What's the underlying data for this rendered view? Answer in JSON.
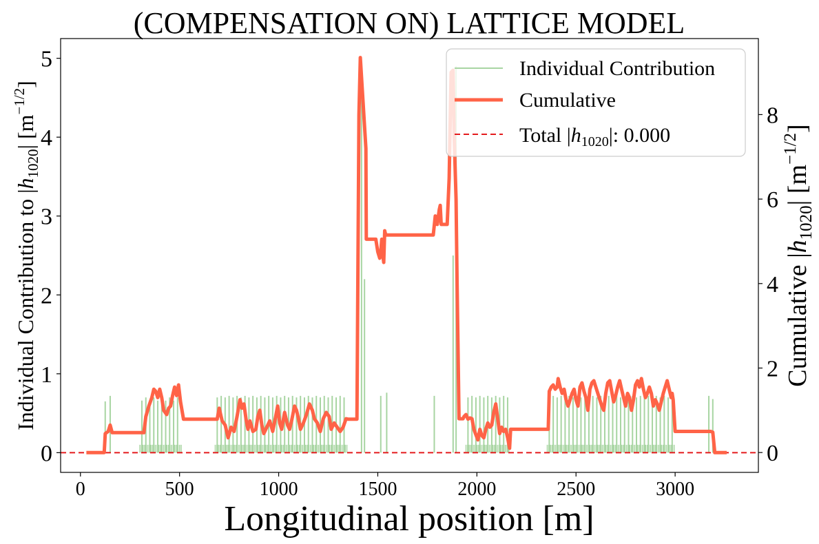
{
  "chart_data": {
    "type": "line",
    "title": "(COMPENSATION ON) LATTICE MODEL",
    "xlabel": "Longitudinal position [m]",
    "ylabel_left_prefix": "Individual Contribution to |",
    "ylabel_left_h": "h",
    "ylabel_left_sub": "1020",
    "ylabel_left_suffix": "| [m",
    "ylabel_left_sup": "−1/2",
    "ylabel_left_end": "]",
    "ylabel_right_prefix": "Cumulative |",
    "ylabel_right_h": "h",
    "ylabel_right_sub": "1020",
    "ylabel_right_suffix": "| [m",
    "ylabel_right_sup": "−1/2",
    "ylabel_right_end": "]",
    "xlim": [
      -100,
      3420
    ],
    "ylim_left": [
      -0.25,
      5.25
    ],
    "ylim_right": [
      -0.47,
      9.8
    ],
    "xticks": [
      0,
      500,
      1000,
      1500,
      2000,
      2500,
      3000
    ],
    "yticks_left": [
      0,
      1,
      2,
      3,
      4,
      5
    ],
    "yticks_right": [
      0,
      2,
      4,
      6,
      8
    ],
    "legend_position": "top-right",
    "legend": {
      "individual": "Individual Contribution",
      "cumulative": "Cumulative",
      "total_prefix": "Total |",
      "total_h": "h",
      "total_sub": "1020",
      "total_suffix": "|: 0.000"
    },
    "colors": {
      "individual": "#a8d5a2",
      "cumulative": "#ff6347",
      "total": "#e41a1c"
    },
    "total_value": 0.0,
    "individual_spikes": [
      [
        125,
        0.65
      ],
      [
        150,
        0.72
      ],
      [
        310,
        0.66
      ],
      [
        330,
        0.7
      ],
      [
        350,
        0.66
      ],
      [
        370,
        0.7
      ],
      [
        390,
        0.66
      ],
      [
        410,
        0.7
      ],
      [
        430,
        0.66
      ],
      [
        450,
        0.7
      ],
      [
        470,
        0.66
      ],
      [
        490,
        0.7
      ],
      [
        690,
        0.7
      ],
      [
        710,
        0.72
      ],
      [
        730,
        0.7
      ],
      [
        750,
        0.72
      ],
      [
        770,
        0.7
      ],
      [
        790,
        0.72
      ],
      [
        810,
        0.7
      ],
      [
        830,
        0.72
      ],
      [
        850,
        0.7
      ],
      [
        870,
        0.72
      ],
      [
        890,
        0.7
      ],
      [
        910,
        0.72
      ],
      [
        930,
        0.7
      ],
      [
        950,
        0.72
      ],
      [
        970,
        0.7
      ],
      [
        990,
        0.72
      ],
      [
        1010,
        0.7
      ],
      [
        1030,
        0.72
      ],
      [
        1050,
        0.7
      ],
      [
        1070,
        0.72
      ],
      [
        1090,
        0.7
      ],
      [
        1110,
        0.72
      ],
      [
        1130,
        0.7
      ],
      [
        1150,
        0.72
      ],
      [
        1170,
        0.7
      ],
      [
        1190,
        0.72
      ],
      [
        1210,
        0.7
      ],
      [
        1230,
        0.72
      ],
      [
        1250,
        0.7
      ],
      [
        1270,
        0.72
      ],
      [
        1290,
        0.7
      ],
      [
        1310,
        0.72
      ],
      [
        1330,
        0.7
      ],
      [
        1418,
        4.9
      ],
      [
        1433,
        2.2
      ],
      [
        1515,
        0.72
      ],
      [
        1545,
        0.76
      ],
      [
        1785,
        0.72
      ],
      [
        1880,
        2.5
      ],
      [
        1895,
        4.9
      ],
      [
        1955,
        0.7
      ],
      [
        1975,
        0.72
      ],
      [
        1995,
        0.7
      ],
      [
        2015,
        0.72
      ],
      [
        2035,
        0.7
      ],
      [
        2055,
        0.72
      ],
      [
        2075,
        0.7
      ],
      [
        2095,
        0.72
      ],
      [
        2115,
        0.7
      ],
      [
        2135,
        0.72
      ],
      [
        2155,
        0.7
      ],
      [
        2365,
        0.7
      ],
      [
        2385,
        0.72
      ],
      [
        2405,
        0.7
      ],
      [
        2425,
        0.72
      ],
      [
        2445,
        0.7
      ],
      [
        2465,
        0.72
      ],
      [
        2485,
        0.7
      ],
      [
        2505,
        0.72
      ],
      [
        2525,
        0.7
      ],
      [
        2545,
        0.72
      ],
      [
        2565,
        0.7
      ],
      [
        2585,
        0.72
      ],
      [
        2605,
        0.7
      ],
      [
        2625,
        0.72
      ],
      [
        2645,
        0.7
      ],
      [
        2665,
        0.72
      ],
      [
        2685,
        0.7
      ],
      [
        2705,
        0.72
      ],
      [
        2725,
        0.7
      ],
      [
        2745,
        0.72
      ],
      [
        2765,
        0.7
      ],
      [
        2785,
        0.72
      ],
      [
        2805,
        0.7
      ],
      [
        2825,
        0.72
      ],
      [
        2845,
        0.7
      ],
      [
        2865,
        0.72
      ],
      [
        2885,
        0.7
      ],
      [
        2905,
        0.72
      ],
      [
        2925,
        0.7
      ],
      [
        2945,
        0.72
      ],
      [
        2965,
        0.7
      ],
      [
        2985,
        0.72
      ],
      [
        3170,
        0.72
      ],
      [
        3190,
        0.68
      ]
    ],
    "individual_small_regions": [
      [
        300,
        510
      ],
      [
        680,
        1345
      ],
      [
        1945,
        2165
      ],
      [
        2355,
        3000
      ]
    ],
    "individual_small_height": 0.1,
    "cumulative": [
      [
        30,
        0
      ],
      [
        120,
        0
      ],
      [
        125,
        0.45
      ],
      [
        140,
        0.5
      ],
      [
        150,
        0.65
      ],
      [
        160,
        0.47
      ],
      [
        320,
        0.47
      ],
      [
        330,
        0.85
      ],
      [
        345,
        1.1
      ],
      [
        360,
        1.3
      ],
      [
        370,
        1.5
      ],
      [
        380,
        1.45
      ],
      [
        390,
        1.3
      ],
      [
        400,
        1.5
      ],
      [
        410,
        1.3
      ],
      [
        420,
        1.0
      ],
      [
        435,
        0.9
      ],
      [
        445,
        1.05
      ],
      [
        455,
        1.1
      ],
      [
        465,
        1.35
      ],
      [
        475,
        1.55
      ],
      [
        485,
        1.35
      ],
      [
        495,
        1.6
      ],
      [
        505,
        1.2
      ],
      [
        520,
        0.79
      ],
      [
        690,
        0.79
      ],
      [
        700,
        1.05
      ],
      [
        715,
        0.75
      ],
      [
        730,
        0.65
      ],
      [
        745,
        0.35
      ],
      [
        760,
        0.6
      ],
      [
        775,
        0.5
      ],
      [
        790,
        0.85
      ],
      [
        805,
        1.25
      ],
      [
        815,
        1.05
      ],
      [
        825,
        1.15
      ],
      [
        835,
        0.8
      ],
      [
        845,
        0.55
      ],
      [
        855,
        0.75
      ],
      [
        870,
        0.5
      ],
      [
        885,
        0.55
      ],
      [
        895,
        0.85
      ],
      [
        905,
        1.0
      ],
      [
        915,
        0.65
      ],
      [
        925,
        0.45
      ],
      [
        940,
        0.6
      ],
      [
        955,
        0.75
      ],
      [
        970,
        0.5
      ],
      [
        985,
        0.85
      ],
      [
        995,
        1.1
      ],
      [
        1005,
        0.7
      ],
      [
        1015,
        0.55
      ],
      [
        1030,
        0.95
      ],
      [
        1045,
        0.65
      ],
      [
        1055,
        0.55
      ],
      [
        1065,
        0.75
      ],
      [
        1080,
        1.1
      ],
      [
        1090,
        1.0
      ],
      [
        1100,
        0.8
      ],
      [
        1110,
        0.55
      ],
      [
        1125,
        0.7
      ],
      [
        1140,
        0.9
      ],
      [
        1155,
        1.15
      ],
      [
        1170,
        1.0
      ],
      [
        1180,
        0.8
      ],
      [
        1195,
        0.7
      ],
      [
        1210,
        0.5
      ],
      [
        1225,
        0.8
      ],
      [
        1240,
        0.95
      ],
      [
        1255,
        0.85
      ],
      [
        1265,
        0.55
      ],
      [
        1280,
        0.7
      ],
      [
        1295,
        0.6
      ],
      [
        1310,
        0.5
      ],
      [
        1325,
        0.6
      ],
      [
        1340,
        0.8
      ],
      [
        1350,
        0.79
      ],
      [
        1395,
        0.79
      ],
      [
        1405,
        8.0
      ],
      [
        1412,
        9.35
      ],
      [
        1440,
        7.2
      ],
      [
        1442,
        5.05
      ],
      [
        1490,
        5.05
      ],
      [
        1500,
        4.75
      ],
      [
        1510,
        4.6
      ],
      [
        1515,
        4.75
      ],
      [
        1520,
        5.05
      ],
      [
        1525,
        4.7
      ],
      [
        1530,
        4.5
      ],
      [
        1535,
        5.25
      ],
      [
        1540,
        5.15
      ],
      [
        1780,
        5.15
      ],
      [
        1790,
        5.6
      ],
      [
        1800,
        5.4
      ],
      [
        1810,
        5.75
      ],
      [
        1815,
        5.85
      ],
      [
        1820,
        5.4
      ],
      [
        1850,
        5.4
      ],
      [
        1860,
        6.5
      ],
      [
        1870,
        9.0
      ],
      [
        1880,
        9.05
      ],
      [
        1885,
        7.5
      ],
      [
        1895,
        6.0
      ],
      [
        1900,
        4.0
      ],
      [
        1910,
        0.8
      ],
      [
        1930,
        0.8
      ],
      [
        1935,
        0.85
      ],
      [
        1945,
        0.9
      ],
      [
        1955,
        0.79
      ],
      [
        1965,
        0.82
      ],
      [
        1975,
        0.8
      ],
      [
        1985,
        0.55
      ],
      [
        1995,
        0.42
      ],
      [
        2005,
        0.3
      ],
      [
        2015,
        0.55
      ],
      [
        2025,
        0.4
      ],
      [
        2035,
        0.35
      ],
      [
        2045,
        0.55
      ],
      [
        2055,
        0.7
      ],
      [
        2065,
        0.6
      ],
      [
        2075,
        0.65
      ],
      [
        2085,
        0.95
      ],
      [
        2095,
        1.15
      ],
      [
        2105,
        0.8
      ],
      [
        2115,
        0.45
      ],
      [
        2125,
        0.6
      ],
      [
        2135,
        0.5
      ],
      [
        2145,
        0.55
      ],
      [
        2155,
        0.35
      ],
      [
        2165,
        0.1
      ],
      [
        2170,
        0.55
      ],
      [
        2360,
        0.55
      ],
      [
        2365,
        1.45
      ],
      [
        2375,
        1.55
      ],
      [
        2385,
        1.6
      ],
      [
        2395,
        1.5
      ],
      [
        2405,
        1.55
      ],
      [
        2410,
        1.75
      ],
      [
        2420,
        1.55
      ],
      [
        2430,
        1.4
      ],
      [
        2440,
        1.5
      ],
      [
        2450,
        1.25
      ],
      [
        2460,
        1.1
      ],
      [
        2470,
        1.25
      ],
      [
        2480,
        1.4
      ],
      [
        2490,
        1.5
      ],
      [
        2500,
        1.25
      ],
      [
        2510,
        1.1
      ],
      [
        2520,
        1.55
      ],
      [
        2530,
        1.65
      ],
      [
        2540,
        1.45
      ],
      [
        2550,
        1.3
      ],
      [
        2560,
        1.0
      ],
      [
        2570,
        1.5
      ],
      [
        2580,
        1.65
      ],
      [
        2590,
        1.7
      ],
      [
        2600,
        1.55
      ],
      [
        2610,
        1.4
      ],
      [
        2620,
        1.25
      ],
      [
        2630,
        1.1
      ],
      [
        2640,
        1.0
      ],
      [
        2650,
        1.4
      ],
      [
        2660,
        1.65
      ],
      [
        2670,
        1.7
      ],
      [
        2680,
        1.45
      ],
      [
        2690,
        1.2
      ],
      [
        2700,
        1.35
      ],
      [
        2710,
        1.55
      ],
      [
        2720,
        1.7
      ],
      [
        2730,
        1.5
      ],
      [
        2740,
        1.3
      ],
      [
        2750,
        1.1
      ],
      [
        2760,
        1.4
      ],
      [
        2770,
        1.3
      ],
      [
        2780,
        1.0
      ],
      [
        2790,
        1.25
      ],
      [
        2800,
        1.6
      ],
      [
        2810,
        1.7
      ],
      [
        2820,
        1.55
      ],
      [
        2830,
        1.75
      ],
      [
        2840,
        1.5
      ],
      [
        2850,
        1.3
      ],
      [
        2860,
        1.4
      ],
      [
        2870,
        1.55
      ],
      [
        2880,
        1.4
      ],
      [
        2890,
        1.1
      ],
      [
        2900,
        1.25
      ],
      [
        2910,
        1.15
      ],
      [
        2920,
        1.0
      ],
      [
        2930,
        1.2
      ],
      [
        2940,
        1.4
      ],
      [
        2950,
        1.55
      ],
      [
        2960,
        1.7
      ],
      [
        2970,
        1.5
      ],
      [
        2980,
        1.3
      ],
      [
        2985,
        1.4
      ],
      [
        2990,
        1.25
      ],
      [
        3000,
        0.5
      ],
      [
        3180,
        0.5
      ],
      [
        3190,
        0.48
      ],
      [
        3200,
        0.0
      ],
      [
        3260,
        0.0
      ]
    ]
  }
}
